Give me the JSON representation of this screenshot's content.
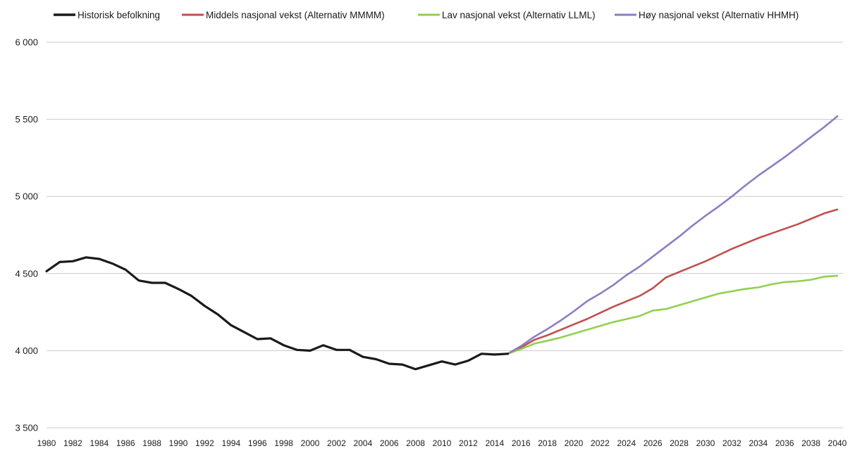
{
  "chart_data": {
    "type": "line",
    "title": "",
    "xlabel": "",
    "ylabel": "",
    "xlim": [
      1980,
      2040
    ],
    "ylim": [
      3500,
      6000
    ],
    "yticks": [
      3500,
      4000,
      4500,
      5000,
      5500,
      6000
    ],
    "ytick_labels": [
      "3 500",
      "4 000",
      "4 500",
      "5 000",
      "5 500",
      "6 000"
    ],
    "xticks": [
      1980,
      1982,
      1984,
      1986,
      1988,
      1990,
      1992,
      1994,
      1996,
      1998,
      2000,
      2002,
      2004,
      2006,
      2008,
      2010,
      2012,
      2014,
      2016,
      2018,
      2020,
      2022,
      2024,
      2026,
      2028,
      2030,
      2032,
      2034,
      2036,
      2038,
      2040
    ],
    "grid": true,
    "legend_position": "top",
    "series": [
      {
        "name": "Historisk befolkning",
        "color": "#1a1a1a",
        "x": [
          1980,
          1981,
          1982,
          1983,
          1984,
          1985,
          1986,
          1987,
          1988,
          1989,
          1990,
          1991,
          1992,
          1993,
          1994,
          1995,
          1996,
          1997,
          1998,
          1999,
          2000,
          2001,
          2002,
          2003,
          2004,
          2005,
          2006,
          2007,
          2008,
          2009,
          2010,
          2011,
          2012,
          2013,
          2014,
          2015
        ],
        "values": [
          4515,
          4575,
          4580,
          4605,
          4595,
          4565,
          4525,
          4455,
          4440,
          4440,
          4400,
          4355,
          4290,
          4235,
          4165,
          4120,
          4075,
          4080,
          4035,
          4005,
          4000,
          4035,
          4005,
          4005,
          3960,
          3945,
          3915,
          3910,
          3880,
          3905,
          3930,
          3910,
          3935,
          3980,
          3975,
          3980
        ]
      },
      {
        "name": "Middels nasjonal vekst (Alternativ MMMM)",
        "color": "#c0504d",
        "x": [
          2015,
          2016,
          2017,
          2018,
          2019,
          2020,
          2021,
          2022,
          2023,
          2024,
          2025,
          2026,
          2027,
          2028,
          2029,
          2030,
          2031,
          2032,
          2033,
          2034,
          2035,
          2036,
          2037,
          2038,
          2039,
          2040
        ],
        "values": [
          3980,
          4020,
          4070,
          4100,
          4135,
          4170,
          4205,
          4245,
          4285,
          4320,
          4355,
          4405,
          4475,
          4510,
          4545,
          4580,
          4620,
          4660,
          4695,
          4730,
          4760,
          4790,
          4820,
          4855,
          4890,
          4915
        ]
      },
      {
        "name": "Lav nasjonal vekst (Alternativ LLML)",
        "color": "#92d050",
        "x": [
          2015,
          2016,
          2017,
          2018,
          2019,
          2020,
          2021,
          2022,
          2023,
          2024,
          2025,
          2026,
          2027,
          2028,
          2029,
          2030,
          2031,
          2032,
          2033,
          2034,
          2035,
          2036,
          2037,
          2038,
          2039,
          2040
        ],
        "values": [
          3980,
          4010,
          4045,
          4065,
          4085,
          4110,
          4135,
          4160,
          4185,
          4205,
          4225,
          4260,
          4270,
          4295,
          4320,
          4345,
          4370,
          4385,
          4400,
          4410,
          4430,
          4445,
          4450,
          4460,
          4480,
          4485
        ]
      },
      {
        "name": "Høy nasjonal vekst (Alternativ HHMH)",
        "color": "#8e7cc3",
        "x": [
          2015,
          2016,
          2017,
          2018,
          2019,
          2020,
          2021,
          2022,
          2023,
          2024,
          2025,
          2026,
          2027,
          2028,
          2029,
          2030,
          2031,
          2032,
          2033,
          2034,
          2035,
          2036,
          2037,
          2038,
          2039,
          2040
        ],
        "values": [
          3980,
          4030,
          4090,
          4140,
          4195,
          4255,
          4320,
          4370,
          4425,
          4490,
          4545,
          4610,
          4675,
          4740,
          4810,
          4875,
          4935,
          5000,
          5070,
          5135,
          5195,
          5255,
          5320,
          5385,
          5450,
          5520
        ]
      }
    ]
  }
}
